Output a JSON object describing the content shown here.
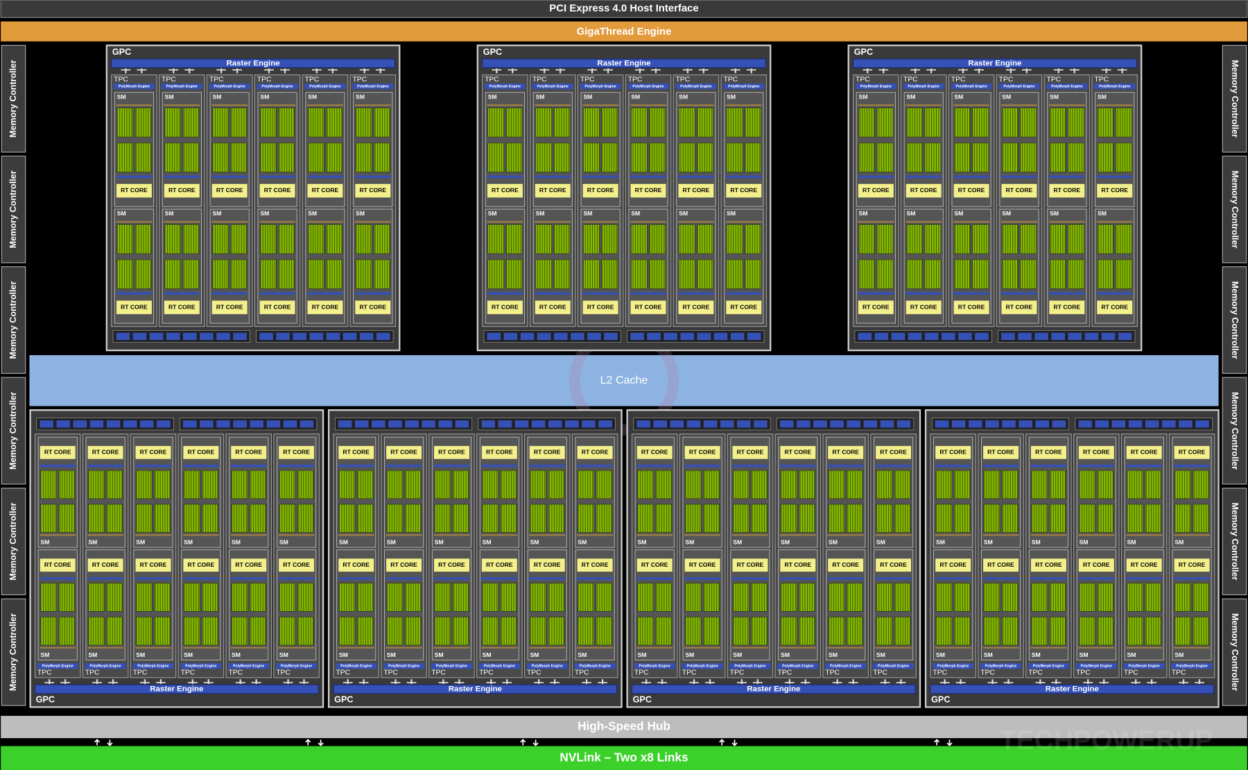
{
  "pcie": "PCI Express 4.0 Host Interface",
  "gigathread": "GigaThread Engine",
  "memory_controllers_left": [
    "Memory Controller",
    "Memory Controller",
    "Memory Controller",
    "Memory Controller",
    "Memory Controller",
    "Memory Controller"
  ],
  "memory_controllers_right": [
    "Memory Controller",
    "Memory Controller",
    "Memory Controller",
    "Memory Controller",
    "Memory Controller",
    "Memory Controller"
  ],
  "gpcs_top": [
    {
      "label": "GPC",
      "raster_engine": "Raster Engine",
      "tpcs": [
        {
          "label": "TPC",
          "polymorph": "PolyMorph Engine",
          "sms": [
            {
              "label": "SM",
              "rt_core": "RT CORE"
            },
            {
              "label": "SM",
              "rt_core": "RT CORE"
            }
          ]
        },
        {
          "label": "TPC",
          "polymorph": "PolyMorph Engine",
          "sms": [
            {
              "label": "SM",
              "rt_core": "RT CORE"
            },
            {
              "label": "SM",
              "rt_core": "RT CORE"
            }
          ]
        },
        {
          "label": "TPC",
          "polymorph": "PolyMorph Engine",
          "sms": [
            {
              "label": "SM",
              "rt_core": "RT CORE"
            },
            {
              "label": "SM",
              "rt_core": "RT CORE"
            }
          ]
        },
        {
          "label": "TPC",
          "polymorph": "PolyMorph Engine",
          "sms": [
            {
              "label": "SM",
              "rt_core": "RT CORE"
            },
            {
              "label": "SM",
              "rt_core": "RT CORE"
            }
          ]
        },
        {
          "label": "TPC",
          "polymorph": "PolyMorph Engine",
          "sms": [
            {
              "label": "SM",
              "rt_core": "RT CORE"
            },
            {
              "label": "SM",
              "rt_core": "RT CORE"
            }
          ]
        },
        {
          "label": "TPC",
          "polymorph": "PolyMorph Engine",
          "sms": [
            {
              "label": "SM",
              "rt_core": "RT CORE"
            },
            {
              "label": "SM",
              "rt_core": "RT CORE"
            }
          ]
        }
      ]
    },
    {
      "label": "GPC",
      "raster_engine": "Raster Engine",
      "tpcs": [
        {
          "label": "TPC",
          "polymorph": "PolyMorph Engine",
          "sms": [
            {
              "label": "SM",
              "rt_core": "RT CORE"
            },
            {
              "label": "SM",
              "rt_core": "RT CORE"
            }
          ]
        },
        {
          "label": "TPC",
          "polymorph": "PolyMorph Engine",
          "sms": [
            {
              "label": "SM",
              "rt_core": "RT CORE"
            },
            {
              "label": "SM",
              "rt_core": "RT CORE"
            }
          ]
        },
        {
          "label": "TPC",
          "polymorph": "PolyMorph Engine",
          "sms": [
            {
              "label": "SM",
              "rt_core": "RT CORE"
            },
            {
              "label": "SM",
              "rt_core": "RT CORE"
            }
          ]
        },
        {
          "label": "TPC",
          "polymorph": "PolyMorph Engine",
          "sms": [
            {
              "label": "SM",
              "rt_core": "RT CORE"
            },
            {
              "label": "SM",
              "rt_core": "RT CORE"
            }
          ]
        },
        {
          "label": "TPC",
          "polymorph": "PolyMorph Engine",
          "sms": [
            {
              "label": "SM",
              "rt_core": "RT CORE"
            },
            {
              "label": "SM",
              "rt_core": "RT CORE"
            }
          ]
        },
        {
          "label": "TPC",
          "polymorph": "PolyMorph Engine",
          "sms": [
            {
              "label": "SM",
              "rt_core": "RT CORE"
            },
            {
              "label": "SM",
              "rt_core": "RT CORE"
            }
          ]
        }
      ]
    },
    {
      "label": "GPC",
      "raster_engine": "Raster Engine",
      "tpcs": [
        {
          "label": "TPC",
          "polymorph": "PolyMorph Engine",
          "sms": [
            {
              "label": "SM",
              "rt_core": "RT CORE"
            },
            {
              "label": "SM",
              "rt_core": "RT CORE"
            }
          ]
        },
        {
          "label": "TPC",
          "polymorph": "PolyMorph Engine",
          "sms": [
            {
              "label": "SM",
              "rt_core": "RT CORE"
            },
            {
              "label": "SM",
              "rt_core": "RT CORE"
            }
          ]
        },
        {
          "label": "TPC",
          "polymorph": "PolyMorph Engine",
          "sms": [
            {
              "label": "SM",
              "rt_core": "RT CORE"
            },
            {
              "label": "SM",
              "rt_core": "RT CORE"
            }
          ]
        },
        {
          "label": "TPC",
          "polymorph": "PolyMorph Engine",
          "sms": [
            {
              "label": "SM",
              "rt_core": "RT CORE"
            },
            {
              "label": "SM",
              "rt_core": "RT CORE"
            }
          ]
        },
        {
          "label": "TPC",
          "polymorph": "PolyMorph Engine",
          "sms": [
            {
              "label": "SM",
              "rt_core": "RT CORE"
            },
            {
              "label": "SM",
              "rt_core": "RT CORE"
            }
          ]
        },
        {
          "label": "TPC",
          "polymorph": "PolyMorph Engine",
          "sms": [
            {
              "label": "SM",
              "rt_core": "RT CORE"
            },
            {
              "label": "SM",
              "rt_core": "RT CORE"
            }
          ]
        }
      ]
    }
  ],
  "l2_cache": "L2 Cache",
  "gpcs_bottom": [
    {
      "label": "GPC",
      "raster_engine": "Raster Engine",
      "tpcs": [
        {
          "label": "TPC",
          "polymorph": "PolyMorph Engine",
          "sms": [
            {
              "label": "SM",
              "rt_core": "RT CORE"
            },
            {
              "label": "SM",
              "rt_core": "RT CORE"
            }
          ]
        },
        {
          "label": "TPC",
          "polymorph": "PolyMorph Engine",
          "sms": [
            {
              "label": "SM",
              "rt_core": "RT CORE"
            },
            {
              "label": "SM",
              "rt_core": "RT CORE"
            }
          ]
        },
        {
          "label": "TPC",
          "polymorph": "PolyMorph Engine",
          "sms": [
            {
              "label": "SM",
              "rt_core": "RT CORE"
            },
            {
              "label": "SM",
              "rt_core": "RT CORE"
            }
          ]
        },
        {
          "label": "TPC",
          "polymorph": "PolyMorph Engine",
          "sms": [
            {
              "label": "SM",
              "rt_core": "RT CORE"
            },
            {
              "label": "SM",
              "rt_core": "RT CORE"
            }
          ]
        },
        {
          "label": "TPC",
          "polymorph": "PolyMorph Engine",
          "sms": [
            {
              "label": "SM",
              "rt_core": "RT CORE"
            },
            {
              "label": "SM",
              "rt_core": "RT CORE"
            }
          ]
        },
        {
          "label": "TPC",
          "polymorph": "PolyMorph Engine",
          "sms": [
            {
              "label": "SM",
              "rt_core": "RT CORE"
            },
            {
              "label": "SM",
              "rt_core": "RT CORE"
            }
          ]
        }
      ]
    },
    {
      "label": "GPC",
      "raster_engine": "Raster Engine",
      "tpcs": [
        {
          "label": "TPC",
          "polymorph": "PolyMorph Engine",
          "sms": [
            {
              "label": "SM",
              "rt_core": "RT CORE"
            },
            {
              "label": "SM",
              "rt_core": "RT CORE"
            }
          ]
        },
        {
          "label": "TPC",
          "polymorph": "PolyMorph Engine",
          "sms": [
            {
              "label": "SM",
              "rt_core": "RT CORE"
            },
            {
              "label": "SM",
              "rt_core": "RT CORE"
            }
          ]
        },
        {
          "label": "TPC",
          "polymorph": "PolyMorph Engine",
          "sms": [
            {
              "label": "SM",
              "rt_core": "RT CORE"
            },
            {
              "label": "SM",
              "rt_core": "RT CORE"
            }
          ]
        },
        {
          "label": "TPC",
          "polymorph": "PolyMorph Engine",
          "sms": [
            {
              "label": "SM",
              "rt_core": "RT CORE"
            },
            {
              "label": "SM",
              "rt_core": "RT CORE"
            }
          ]
        },
        {
          "label": "TPC",
          "polymorph": "PolyMorph Engine",
          "sms": [
            {
              "label": "SM",
              "rt_core": "RT CORE"
            },
            {
              "label": "SM",
              "rt_core": "RT CORE"
            }
          ]
        },
        {
          "label": "TPC",
          "polymorph": "PolyMorph Engine",
          "sms": [
            {
              "label": "SM",
              "rt_core": "RT CORE"
            },
            {
              "label": "SM",
              "rt_core": "RT CORE"
            }
          ]
        }
      ]
    },
    {
      "label": "GPC",
      "raster_engine": "Raster Engine",
      "tpcs": [
        {
          "label": "TPC",
          "polymorph": "PolyMorph Engine",
          "sms": [
            {
              "label": "SM",
              "rt_core": "RT CORE"
            },
            {
              "label": "SM",
              "rt_core": "RT CORE"
            }
          ]
        },
        {
          "label": "TPC",
          "polymorph": "PolyMorph Engine",
          "sms": [
            {
              "label": "SM",
              "rt_core": "RT CORE"
            },
            {
              "label": "SM",
              "rt_core": "RT CORE"
            }
          ]
        },
        {
          "label": "TPC",
          "polymorph": "PolyMorph Engine",
          "sms": [
            {
              "label": "SM",
              "rt_core": "RT CORE"
            },
            {
              "label": "SM",
              "rt_core": "RT CORE"
            }
          ]
        },
        {
          "label": "TPC",
          "polymorph": "PolyMorph Engine",
          "sms": [
            {
              "label": "SM",
              "rt_core": "RT CORE"
            },
            {
              "label": "SM",
              "rt_core": "RT CORE"
            }
          ]
        },
        {
          "label": "TPC",
          "polymorph": "PolyMorph Engine",
          "sms": [
            {
              "label": "SM",
              "rt_core": "RT CORE"
            },
            {
              "label": "SM",
              "rt_core": "RT CORE"
            }
          ]
        },
        {
          "label": "TPC",
          "polymorph": "PolyMorph Engine",
          "sms": [
            {
              "label": "SM",
              "rt_core": "RT CORE"
            },
            {
              "label": "SM",
              "rt_core": "RT CORE"
            }
          ]
        }
      ]
    },
    {
      "label": "GPC",
      "raster_engine": "Raster Engine",
      "tpcs": [
        {
          "label": "TPC",
          "polymorph": "PolyMorph Engine",
          "sms": [
            {
              "label": "SM",
              "rt_core": "RT CORE"
            },
            {
              "label": "SM",
              "rt_core": "RT CORE"
            }
          ]
        },
        {
          "label": "TPC",
          "polymorph": "PolyMorph Engine",
          "sms": [
            {
              "label": "SM",
              "rt_core": "RT CORE"
            },
            {
              "label": "SM",
              "rt_core": "RT CORE"
            }
          ]
        },
        {
          "label": "TPC",
          "polymorph": "PolyMorph Engine",
          "sms": [
            {
              "label": "SM",
              "rt_core": "RT CORE"
            },
            {
              "label": "SM",
              "rt_core": "RT CORE"
            }
          ]
        },
        {
          "label": "TPC",
          "polymorph": "PolyMorph Engine",
          "sms": [
            {
              "label": "SM",
              "rt_core": "RT CORE"
            },
            {
              "label": "SM",
              "rt_core": "RT CORE"
            }
          ]
        },
        {
          "label": "TPC",
          "polymorph": "PolyMorph Engine",
          "sms": [
            {
              "label": "SM",
              "rt_core": "RT CORE"
            },
            {
              "label": "SM",
              "rt_core": "RT CORE"
            }
          ]
        },
        {
          "label": "TPC",
          "polymorph": "PolyMorph Engine",
          "sms": [
            {
              "label": "SM",
              "rt_core": "RT CORE"
            },
            {
              "label": "SM",
              "rt_core": "RT CORE"
            }
          ]
        }
      ]
    }
  ],
  "high_speed_hub": "High-Speed Hub",
  "nvlink": "NVLink – Two x8 Links",
  "watermark": "TECHPOWERUP"
}
